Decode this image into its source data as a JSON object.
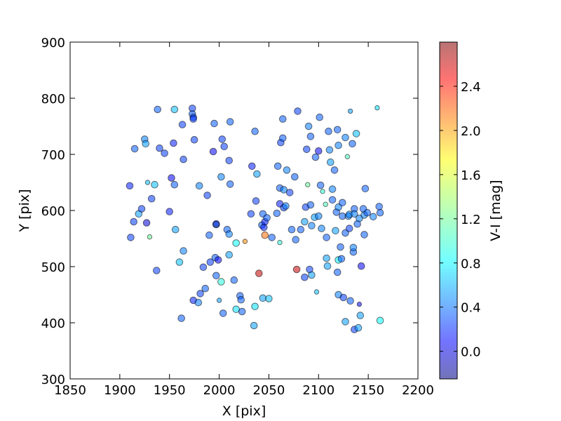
{
  "chart_data": {
    "type": "scatter",
    "title": "",
    "xlabel": "X [pix]",
    "ylabel": "Y [pix]",
    "xlim": [
      1850,
      2200
    ],
    "ylim": [
      300,
      900
    ],
    "xticks": [
      "1850",
      "1900",
      "1950",
      "2000",
      "2050",
      "2100",
      "2150",
      "2200"
    ],
    "yticks": [
      "300",
      "400",
      "500",
      "600",
      "700",
      "800",
      "900"
    ],
    "grid": false,
    "colorbar": {
      "label": "V-I [mag]",
      "range": [
        -0.25,
        2.8
      ],
      "ticks": [
        "0.0",
        "0.4",
        "0.8",
        "1.2",
        "1.6",
        "2.0",
        "2.4"
      ],
      "colormap": "jet",
      "alpha": 0.55
    },
    "points": [
      [
        1910,
        644,
        0.2,
        1
      ],
      [
        1911,
        552,
        0.3,
        1
      ],
      [
        1915,
        710,
        0.4,
        1
      ],
      [
        1914,
        580,
        0.3,
        1
      ],
      [
        1919,
        594,
        0.6,
        1
      ],
      [
        1922,
        603,
        0.3,
        1
      ],
      [
        1925,
        727,
        0.5,
        1
      ],
      [
        1926,
        719,
        0.6,
        1
      ],
      [
        1928,
        650,
        0.7,
        0
      ],
      [
        1927,
        578,
        0.0,
        1
      ],
      [
        1930,
        553,
        1.2,
        0
      ],
      [
        1932,
        621,
        0.3,
        1
      ],
      [
        1935,
        646,
        0.7,
        1
      ],
      [
        1937,
        493,
        0.3,
        1
      ],
      [
        1938,
        780,
        0.4,
        1
      ],
      [
        1940,
        711,
        0.3,
        1
      ],
      [
        1945,
        702,
        0.3,
        1
      ],
      [
        1950,
        598,
        0.2,
        1
      ],
      [
        1952,
        658,
        0.1,
        1
      ],
      [
        1954,
        720,
        0.2,
        1
      ],
      [
        1955,
        780,
        0.7,
        1
      ],
      [
        1955,
        646,
        0.4,
        1
      ],
      [
        1956,
        566,
        0.6,
        1
      ],
      [
        1960,
        508,
        0.7,
        1
      ],
      [
        1962,
        408,
        0.4,
        1
      ],
      [
        1963,
        753,
        0.3,
        1
      ],
      [
        1964,
        691,
        0.3,
        1
      ],
      [
        1964,
        528,
        0.5,
        1
      ],
      [
        1973,
        782,
        0.3,
        1
      ],
      [
        1973,
        772,
        0.4,
        1
      ],
      [
        1974,
        766,
        0.3,
        1
      ],
      [
        1974,
        763,
        0.3,
        1
      ],
      [
        1975,
        726,
        0.3,
        1
      ],
      [
        1974,
        440,
        0.2,
        1
      ],
      [
        1979,
        436,
        0.5,
        1
      ],
      [
        1980,
        644,
        0.5,
        1
      ],
      [
        1981,
        452,
        0.3,
        1
      ],
      [
        1984,
        499,
        0.3,
        1
      ],
      [
        1986,
        461,
        0.4,
        1
      ],
      [
        1988,
        627,
        0.3,
        1
      ],
      [
        1990,
        556,
        0.4,
        1
      ],
      [
        1991,
        508,
        0.3,
        1
      ],
      [
        1994,
        705,
        0.1,
        1
      ],
      [
        1995,
        755,
        0.4,
        1
      ],
      [
        1996,
        516,
        0.4,
        1
      ],
      [
        1997,
        575,
        0.6,
        1
      ],
      [
        1997,
        576,
        -0.1,
        1
      ],
      [
        1997,
        484,
        0.4,
        1
      ],
      [
        1999,
        512,
        0.1,
        1
      ],
      [
        2000,
        440,
        0.6,
        0
      ],
      [
        2002,
        660,
        0.5,
        1
      ],
      [
        2002,
        473,
        1.0,
        1
      ],
      [
        2003,
        727,
        0.3,
        1
      ],
      [
        2004,
        417,
        0.4,
        1
      ],
      [
        2005,
        714,
        0.3,
        1
      ],
      [
        2008,
        566,
        0.4,
        1
      ],
      [
        2010,
        689,
        0.3,
        1
      ],
      [
        2010,
        558,
        0.5,
        1
      ],
      [
        2010,
        521,
        0.6,
        1
      ],
      [
        2011,
        758,
        0.4,
        1
      ],
      [
        2011,
        647,
        0.4,
        1
      ],
      [
        2015,
        476,
        0.4,
        1
      ],
      [
        2017,
        424,
        0.8,
        1
      ],
      [
        2017,
        542,
        0.9,
        1
      ],
      [
        2021,
        448,
        0.4,
        1
      ],
      [
        2022,
        441,
        0.4,
        1
      ],
      [
        2023,
        420,
        0.4,
        1
      ],
      [
        2026,
        545,
        2.0,
        0
      ],
      [
        2032,
        594,
        0.3,
        1
      ],
      [
        2033,
        679,
        0.2,
        1
      ],
      [
        2035,
        395,
        0.6,
        1
      ],
      [
        2036,
        429,
        0.8,
        1
      ],
      [
        2036,
        741,
        0.4,
        1
      ],
      [
        2037,
        617,
        0.3,
        1
      ],
      [
        2038,
        665,
        0.6,
        1
      ],
      [
        2040,
        488,
        2.6,
        1
      ],
      [
        2043,
        574,
        0.4,
        1
      ],
      [
        2044,
        594,
        0.4,
        1
      ],
      [
        2044,
        444,
        0.6,
        1
      ],
      [
        2046,
        556,
        2.1,
        1
      ],
      [
        2045,
        570,
        0.2,
        1
      ],
      [
        2046,
        580,
        0.2,
        1
      ],
      [
        2048,
        587,
        0.4,
        1
      ],
      [
        2050,
        443,
        0.7,
        1
      ],
      [
        2053,
        552,
        0.4,
        1
      ],
      [
        2058,
        595,
        0.4,
        1
      ],
      [
        2059,
        679,
        0.4,
        1
      ],
      [
        2061,
        543,
        1.0,
        0
      ],
      [
        2061,
        612,
        0.2,
        1
      ],
      [
        2061,
        640,
        0.4,
        1
      ],
      [
        2062,
        721,
        0.3,
        1
      ],
      [
        2064,
        729,
        0.4,
        1
      ],
      [
        2064,
        763,
        0.4,
        1
      ],
      [
        2065,
        605,
        0.3,
        1
      ],
      [
        2067,
        608,
        0.5,
        1
      ],
      [
        2065,
        637,
        0.5,
        1
      ],
      [
        2068,
        672,
        0.5,
        1
      ],
      [
        2071,
        632,
        0.3,
        1
      ],
      [
        2073,
        566,
        0.4,
        1
      ],
      [
        2076,
        660,
        0.4,
        1
      ],
      [
        2077,
        548,
        0.4,
        1
      ],
      [
        2078,
        495,
        2.6,
        1
      ],
      [
        2079,
        777,
        0.3,
        1
      ],
      [
        2082,
        566,
        0.4,
        1
      ],
      [
        2086,
        481,
        0.3,
        1
      ],
      [
        2086,
        580,
        0.6,
        1
      ],
      [
        2087,
        606,
        0.3,
        1
      ],
      [
        2088,
        709,
        0.3,
        1
      ],
      [
        2089,
        646,
        1.2,
        0
      ],
      [
        2090,
        750,
        0.5,
        1
      ],
      [
        2091,
        495,
        0.3,
        1
      ],
      [
        2092,
        610,
        0.4,
        1
      ],
      [
        2092,
        732,
        0.4,
        1
      ],
      [
        2093,
        485,
        0.6,
        1
      ],
      [
        2093,
        573,
        0.5,
        1
      ],
      [
        2096,
        588,
        0.6,
        1
      ],
      [
        2097,
        695,
        0.4,
        1
      ],
      [
        2098,
        455,
        0.7,
        0
      ],
      [
        2100,
        706,
        0.1,
        1
      ],
      [
        2100,
        590,
        0.5,
        1
      ],
      [
        2101,
        766,
        0.4,
        1
      ],
      [
        2102,
        645,
        0.4,
        1
      ],
      [
        2103,
        568,
        0.5,
        1
      ],
      [
        2104,
        634,
        1.0,
        0
      ],
      [
        2107,
        611,
        1.1,
        0
      ],
      [
        2108,
        552,
        0.4,
        1
      ],
      [
        2108,
        515,
        0.6,
        1
      ],
      [
        2109,
        501,
        0.6,
        1
      ],
      [
        2110,
        741,
        0.4,
        1
      ],
      [
        2111,
        708,
        0.5,
        1
      ],
      [
        2112,
        686,
        0.6,
        1
      ],
      [
        2114,
        619,
        0.4,
        1
      ],
      [
        2114,
        638,
        0.5,
        1
      ],
      [
        2116,
        672,
        0.4,
        1
      ],
      [
        2117,
        564,
        0.6,
        1
      ],
      [
        2118,
        597,
        0.4,
        1
      ],
      [
        2119,
        490,
        0.4,
        1
      ],
      [
        2119,
        744,
        0.4,
        1
      ],
      [
        2120,
        512,
        0.9,
        1
      ],
      [
        2120,
        716,
        0.5,
        1
      ],
      [
        2120,
        606,
        0.5,
        1
      ],
      [
        2120,
        450,
        0.5,
        1
      ],
      [
        2122,
        535,
        0.4,
        1
      ],
      [
        2123,
        514,
        0.4,
        1
      ],
      [
        2124,
        590,
        0.4,
        1
      ],
      [
        2124,
        614,
        0.4,
        1
      ],
      [
        2125,
        445,
        0.3,
        1
      ],
      [
        2127,
        730,
        0.5,
        1
      ],
      [
        2127,
        560,
        0.4,
        1
      ],
      [
        2127,
        402,
        0.6,
        1
      ],
      [
        2129,
        696,
        1.1,
        0
      ],
      [
        2130,
        590,
        0.5,
        1
      ],
      [
        2131,
        568,
        0.3,
        1
      ],
      [
        2131,
        593,
        0.5,
        1
      ],
      [
        2132,
        439,
        0.4,
        1
      ],
      [
        2132,
        777,
        0.6,
        0
      ],
      [
        2134,
        719,
        0.4,
        1
      ],
      [
        2135,
        526,
        0.4,
        1
      ],
      [
        2135,
        534,
        0.5,
        1
      ],
      [
        2136,
        388,
        0.3,
        1
      ],
      [
        2136,
        603,
        0.4,
        1
      ],
      [
        2136,
        594,
        0.5,
        1
      ],
      [
        2138,
        737,
        0.7,
        1
      ],
      [
        2139,
        576,
        0.4,
        1
      ],
      [
        2140,
        391,
        0.6,
        1
      ],
      [
        2141,
        433,
        0.1,
        0
      ],
      [
        2141,
        586,
        0.5,
        1
      ],
      [
        2142,
        413,
        0.6,
        1
      ],
      [
        2143,
        501,
        0.1,
        1
      ],
      [
        2145,
        603,
        0.4,
        1
      ],
      [
        2146,
        557,
        0.4,
        1
      ],
      [
        2146,
        592,
        0.5,
        1
      ],
      [
        2147,
        639,
        0.4,
        1
      ],
      [
        2149,
        596,
        0.4,
        1
      ],
      [
        2155,
        589,
        0.5,
        1
      ],
      [
        2159,
        783,
        0.8,
        0
      ],
      [
        2161,
        607,
        0.4,
        1
      ],
      [
        2162,
        596,
        0.4,
        1
      ],
      [
        2162,
        404,
        0.9,
        1
      ]
    ]
  }
}
